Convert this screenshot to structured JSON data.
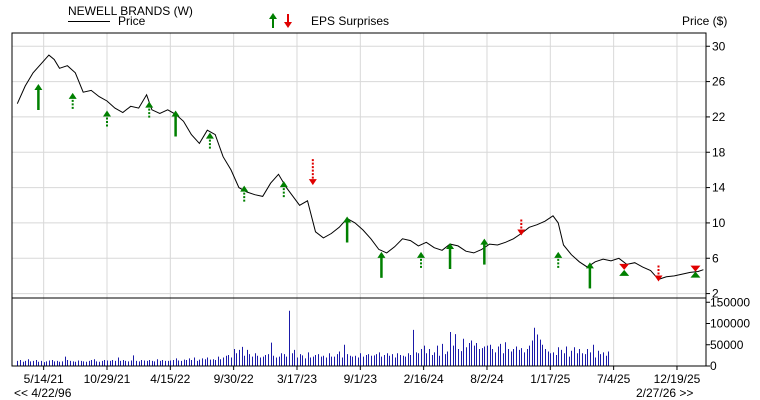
{
  "header": {
    "company": "NEWELL BRANDS (W)",
    "price_legend": "Price",
    "eps_legend": "EPS Surprises",
    "price_axis_label": "Price ($)"
  },
  "footer": {
    "range_start": "<< 4/22/96",
    "range_end": "2/27/26 >>"
  },
  "colors": {
    "price_line": "#000000",
    "eps_beat": "#008000",
    "eps_miss": "#e00000",
    "volume": "#1a1aa8",
    "axis": "#000000",
    "grid": "#d8d8d8"
  },
  "chart_data": {
    "type": "line",
    "x_tick_labels": [
      "5/14/21",
      "10/29/21",
      "4/15/22",
      "9/30/22",
      "3/17/23",
      "9/1/23",
      "2/16/24",
      "8/2/24",
      "1/17/25",
      "7/4/25",
      "12/19/25"
    ],
    "price_ticks": [
      2,
      6,
      10,
      14,
      18,
      22,
      26,
      30
    ],
    "price_ylim": [
      1.5,
      31.5
    ],
    "volume_ticks": [
      0,
      50000,
      100000,
      150000
    ],
    "volume_ylim": [
      0,
      160000
    ],
    "series": [
      {
        "name": "Price",
        "points": [
          [
            "2021-03-05",
            23.5
          ],
          [
            "2021-03-26",
            25.5
          ],
          [
            "2021-04-16",
            27.0
          ],
          [
            "2021-05-07",
            28.0
          ],
          [
            "2021-05-28",
            29.0
          ],
          [
            "2021-06-11",
            28.5
          ],
          [
            "2021-06-25",
            27.5
          ],
          [
            "2021-07-16",
            27.8
          ],
          [
            "2021-08-06",
            27.0
          ],
          [
            "2021-08-27",
            24.8
          ],
          [
            "2021-09-17",
            25.0
          ],
          [
            "2021-10-08",
            24.3
          ],
          [
            "2021-10-29",
            23.8
          ],
          [
            "2021-11-19",
            23.0
          ],
          [
            "2021-12-10",
            22.5
          ],
          [
            "2021-12-31",
            23.2
          ],
          [
            "2022-01-21",
            23.0
          ],
          [
            "2022-02-11",
            24.5
          ],
          [
            "2022-02-25",
            22.8
          ],
          [
            "2022-03-18",
            22.4
          ],
          [
            "2022-04-08",
            22.8
          ],
          [
            "2022-04-29",
            22.3
          ],
          [
            "2022-05-20",
            21.5
          ],
          [
            "2022-06-10",
            20.0
          ],
          [
            "2022-07-01",
            19.0
          ],
          [
            "2022-07-22",
            20.5
          ],
          [
            "2022-08-12",
            20.0
          ],
          [
            "2022-09-02",
            17.5
          ],
          [
            "2022-09-23",
            16.0
          ],
          [
            "2022-10-14",
            14.0
          ],
          [
            "2022-11-04",
            13.5
          ],
          [
            "2022-11-25",
            13.2
          ],
          [
            "2022-12-16",
            13.0
          ],
          [
            "2023-01-06",
            14.5
          ],
          [
            "2023-01-27",
            15.5
          ],
          [
            "2023-02-17",
            14.0
          ],
          [
            "2023-03-03",
            13.2
          ],
          [
            "2023-03-24",
            12.0
          ],
          [
            "2023-04-14",
            12.5
          ],
          [
            "2023-05-05",
            9.0
          ],
          [
            "2023-05-26",
            8.3
          ],
          [
            "2023-06-16",
            8.8
          ],
          [
            "2023-07-07",
            9.5
          ],
          [
            "2023-07-28",
            10.5
          ],
          [
            "2023-08-18",
            10.0
          ],
          [
            "2023-09-08",
            9.2
          ],
          [
            "2023-09-29",
            8.2
          ],
          [
            "2023-10-20",
            7.0
          ],
          [
            "2023-11-10",
            6.6
          ],
          [
            "2023-12-01",
            7.3
          ],
          [
            "2023-12-22",
            8.2
          ],
          [
            "2024-01-12",
            8.0
          ],
          [
            "2024-02-02",
            7.4
          ],
          [
            "2024-02-23",
            7.8
          ],
          [
            "2024-03-15",
            7.2
          ],
          [
            "2024-04-05",
            6.9
          ],
          [
            "2024-04-26",
            7.6
          ],
          [
            "2024-05-17",
            7.4
          ],
          [
            "2024-06-07",
            6.8
          ],
          [
            "2024-06-28",
            6.6
          ],
          [
            "2024-07-19",
            7.0
          ],
          [
            "2024-08-09",
            7.6
          ],
          [
            "2024-08-30",
            7.5
          ],
          [
            "2024-09-20",
            7.8
          ],
          [
            "2024-10-11",
            8.2
          ],
          [
            "2024-11-01",
            8.8
          ],
          [
            "2024-11-22",
            9.5
          ],
          [
            "2024-12-13",
            9.8
          ],
          [
            "2025-01-03",
            10.2
          ],
          [
            "2025-01-24",
            10.8
          ],
          [
            "2025-02-07",
            10.0
          ],
          [
            "2025-02-21",
            7.5
          ],
          [
            "2025-03-14",
            6.4
          ],
          [
            "2025-04-04",
            5.6
          ],
          [
            "2025-04-25",
            5.0
          ],
          [
            "2025-05-16",
            5.6
          ],
          [
            "2025-06-06",
            5.9
          ],
          [
            "2025-06-27",
            5.7
          ],
          [
            "2025-07-18",
            6.0
          ],
          [
            "2025-08-08",
            5.3
          ],
          [
            "2025-08-29",
            5.5
          ],
          [
            "2025-09-19",
            5.0
          ],
          [
            "2025-10-10",
            4.6
          ],
          [
            "2025-10-31",
            3.6
          ],
          [
            "2025-11-21",
            3.9
          ],
          [
            "2025-12-12",
            4.0
          ],
          [
            "2026-01-02",
            4.2
          ],
          [
            "2026-01-23",
            4.4
          ],
          [
            "2026-02-13",
            4.5
          ],
          [
            "2026-02-27",
            4.7
          ]
        ]
      }
    ],
    "eps_surprises": [
      {
        "date": "2021-04-30",
        "type": "beat",
        "size": "large",
        "price": 25.5
      },
      {
        "date": "2021-07-30",
        "type": "beat",
        "size": "small",
        "price": 24.5
      },
      {
        "date": "2021-10-29",
        "type": "beat",
        "size": "small",
        "price": 22.5
      },
      {
        "date": "2022-02-18",
        "type": "beat",
        "size": "small",
        "price": 23.5
      },
      {
        "date": "2022-04-29",
        "type": "beat",
        "size": "large",
        "price": 22.5
      },
      {
        "date": "2022-07-29",
        "type": "beat",
        "size": "small",
        "price": 20.0
      },
      {
        "date": "2022-10-28",
        "type": "beat",
        "size": "small",
        "price": 14.0
      },
      {
        "date": "2023-02-10",
        "type": "beat",
        "size": "small",
        "price": 14.5
      },
      {
        "date": "2023-04-28",
        "type": "miss",
        "size": "large",
        "price": 14.5
      },
      {
        "date": "2023-07-28",
        "type": "beat",
        "size": "large",
        "price": 10.5
      },
      {
        "date": "2023-10-27",
        "type": "beat",
        "size": "large",
        "price": 6.5
      },
      {
        "date": "2024-02-09",
        "type": "beat",
        "size": "small",
        "price": 6.5
      },
      {
        "date": "2024-04-26",
        "type": "beat",
        "size": "large",
        "price": 7.5
      },
      {
        "date": "2024-07-26",
        "type": "beat",
        "size": "large",
        "price": 8.0
      },
      {
        "date": "2024-11-01",
        "type": "miss",
        "size": "small",
        "price": 8.8
      },
      {
        "date": "2025-02-07",
        "type": "beat",
        "size": "small",
        "price": 6.5
      },
      {
        "date": "2025-05-02",
        "type": "beat",
        "size": "large",
        "price": 5.3
      },
      {
        "date": "2025-08-01",
        "type": "miss",
        "size": "inline",
        "price": 4.8
      },
      {
        "date": "2025-10-31",
        "type": "miss",
        "size": "small",
        "price": 3.6
      },
      {
        "date": "2026-02-06",
        "type": "miss",
        "size": "inline",
        "price": 4.6
      }
    ],
    "volume_bars": {
      "start": "2021-03-05",
      "values": [
        12,
        14,
        10,
        12,
        16,
        11,
        12,
        14,
        10,
        12,
        9,
        11,
        13,
        14,
        11,
        12,
        10,
        11,
        22,
        14,
        12,
        11,
        10,
        13,
        12,
        11,
        10,
        12,
        14,
        16,
        11,
        10,
        12,
        14,
        13,
        12,
        14,
        12,
        20,
        12,
        14,
        12,
        11,
        13,
        25,
        12,
        11,
        14,
        13,
        12,
        14,
        12,
        11,
        16,
        12,
        14,
        12,
        12,
        13,
        14,
        18,
        13,
        12,
        15,
        14,
        18,
        14,
        20,
        12,
        15,
        18,
        16,
        20,
        15,
        16,
        14,
        22,
        16,
        20,
        24,
        26,
        20,
        40,
        30,
        38,
        45,
        24,
        38,
        28,
        22,
        30,
        24,
        20,
        22,
        26,
        28,
        55,
        24,
        20,
        22,
        30,
        28,
        22,
        130,
        30,
        38,
        20,
        28,
        25,
        18,
        32,
        20,
        22,
        26,
        28,
        22,
        24,
        20,
        30,
        22,
        22,
        28,
        34,
        20,
        50,
        28,
        24,
        22,
        24,
        20,
        30,
        22,
        26,
        28,
        24,
        25,
        28,
        32,
        22,
        26,
        30,
        24,
        28,
        20,
        30,
        26,
        24,
        22,
        30,
        26,
        85,
        32,
        30,
        40,
        48,
        30,
        40,
        26,
        32,
        48,
        24,
        52,
        28,
        34,
        80,
        48,
        75,
        40,
        35,
        64,
        44,
        54,
        60,
        48,
        54,
        40,
        42,
        46,
        48,
        50,
        40,
        32,
        46,
        52,
        30,
        56,
        40,
        34,
        40,
        46,
        38,
        42,
        32,
        40,
        48,
        60,
        90,
        74,
        62,
        50,
        40,
        34,
        30,
        32,
        26,
        44,
        38,
        30,
        46,
        22,
        36,
        44,
        30,
        40,
        30,
        28,
        40,
        32,
        50,
        20,
        36,
        28,
        32,
        24,
        34
      ]
    }
  }
}
